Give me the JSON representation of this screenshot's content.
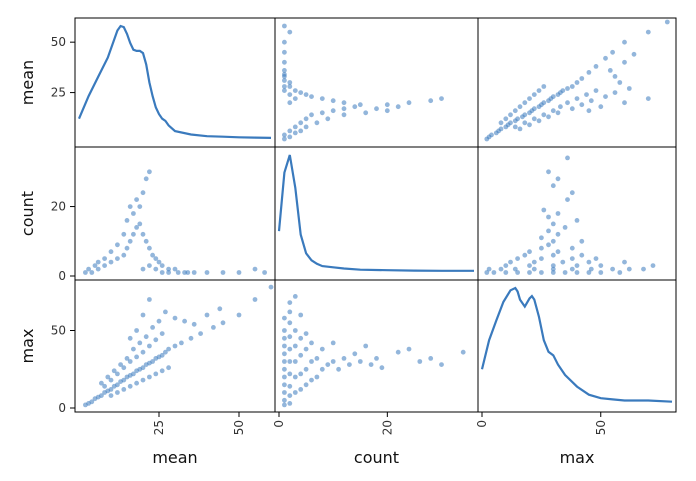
{
  "chart_data": {
    "type": "scatter",
    "variables": [
      "mean",
      "count",
      "max"
    ],
    "grid": false,
    "color": "#3a7abd",
    "ranges": {
      "mean": [
        0,
        60
      ],
      "count": [
        0,
        36
      ],
      "max": [
        0,
        80
      ]
    },
    "x_ticks": {
      "mean": [
        25,
        50
      ],
      "count": [
        0,
        20
      ],
      "max": [
        0,
        50
      ]
    },
    "y_ticks": {
      "mean": [
        25,
        50
      ],
      "count": [
        0,
        20
      ],
      "max": [
        0,
        50
      ]
    },
    "tick_labels": {
      "x_mean": [
        "25",
        "50"
      ],
      "x_count": [
        "0",
        "20"
      ],
      "x_max": [
        "0",
        "50"
      ],
      "y_mean": [
        "25",
        "50"
      ],
      "y_count": [
        "0",
        "20"
      ],
      "y_max": [
        "0",
        "50"
      ]
    },
    "axis_labels": {
      "x_mean": "mean",
      "x_count": "count",
      "x_max": "max",
      "y_mean": "mean",
      "y_count": "count",
      "y_max": "max"
    },
    "kde": {
      "mean": {
        "x": [
          0,
          3,
          6,
          9,
          12,
          13,
          14,
          15,
          16,
          17,
          18,
          19,
          20,
          21,
          22,
          23,
          24,
          25,
          26,
          27,
          28,
          30,
          35,
          40,
          45,
          50,
          55,
          60
        ],
        "density": [
          0.18,
          0.38,
          0.55,
          0.72,
          0.96,
          1.0,
          0.99,
          0.93,
          0.85,
          0.79,
          0.78,
          0.78,
          0.76,
          0.66,
          0.5,
          0.38,
          0.28,
          0.22,
          0.18,
          0.16,
          0.12,
          0.07,
          0.04,
          0.025,
          0.02,
          0.015,
          0.012,
          0.01
        ]
      },
      "count": {
        "x": [
          0,
          1,
          2,
          3,
          4,
          5,
          6,
          7,
          8,
          10,
          12,
          15,
          20,
          25,
          30,
          36
        ],
        "density": [
          0.35,
          0.85,
          1.0,
          0.72,
          0.32,
          0.16,
          0.1,
          0.07,
          0.05,
          0.04,
          0.03,
          0.02,
          0.015,
          0.012,
          0.01,
          0.01
        ]
      },
      "max": {
        "x": [
          0,
          3,
          6,
          9,
          12,
          14,
          15,
          16,
          18,
          20,
          21,
          22,
          24,
          26,
          28,
          30,
          32,
          35,
          40,
          45,
          50,
          55,
          60,
          70,
          80
        ],
        "density": [
          0.3,
          0.55,
          0.72,
          0.88,
          0.98,
          1.0,
          0.97,
          0.9,
          0.84,
          0.91,
          0.93,
          0.9,
          0.75,
          0.55,
          0.45,
          0.42,
          0.34,
          0.25,
          0.15,
          0.08,
          0.05,
          0.04,
          0.03,
          0.03,
          0.02
        ]
      }
    },
    "scatter": {
      "mean_max": [
        [
          2,
          2
        ],
        [
          3,
          3
        ],
        [
          4,
          4
        ],
        [
          5,
          6
        ],
        [
          6,
          7
        ],
        [
          7,
          8
        ],
        [
          8,
          10
        ],
        [
          9,
          11
        ],
        [
          10,
          12
        ],
        [
          11,
          14
        ],
        [
          12,
          15
        ],
        [
          13,
          17
        ],
        [
          14,
          18
        ],
        [
          15,
          20
        ],
        [
          16,
          21
        ],
        [
          17,
          22
        ],
        [
          18,
          24
        ],
        [
          19,
          25
        ],
        [
          20,
          26
        ],
        [
          21,
          28
        ],
        [
          22,
          29
        ],
        [
          23,
          30
        ],
        [
          24,
          32
        ],
        [
          25,
          33
        ],
        [
          26,
          34
        ],
        [
          27,
          36
        ],
        [
          28,
          38
        ],
        [
          30,
          40
        ],
        [
          32,
          42
        ],
        [
          35,
          45
        ],
        [
          38,
          48
        ],
        [
          42,
          52
        ],
        [
          45,
          55
        ],
        [
          50,
          60
        ],
        [
          55,
          70
        ],
        [
          60,
          78
        ],
        [
          8,
          14
        ],
        [
          10,
          18
        ],
        [
          12,
          22
        ],
        [
          14,
          26
        ],
        [
          16,
          30
        ],
        [
          18,
          33
        ],
        [
          20,
          36
        ],
        [
          22,
          40
        ],
        [
          24,
          44
        ],
        [
          26,
          48
        ],
        [
          15,
          32
        ],
        [
          17,
          38
        ],
        [
          19,
          42
        ],
        [
          21,
          46
        ],
        [
          23,
          52
        ],
        [
          25,
          56
        ],
        [
          13,
          28
        ],
        [
          11,
          24
        ],
        [
          9,
          20
        ],
        [
          7,
          16
        ],
        [
          20,
          60
        ],
        [
          22,
          70
        ],
        [
          18,
          50
        ],
        [
          16,
          45
        ],
        [
          27,
          62
        ],
        [
          30,
          58
        ],
        [
          33,
          56
        ],
        [
          36,
          54
        ],
        [
          40,
          60
        ],
        [
          44,
          64
        ],
        [
          10,
          8
        ],
        [
          12,
          10
        ],
        [
          14,
          12
        ],
        [
          16,
          14
        ],
        [
          18,
          16
        ],
        [
          20,
          18
        ],
        [
          22,
          20
        ],
        [
          24,
          22
        ],
        [
          26,
          24
        ],
        [
          28,
          26
        ]
      ],
      "mean_count": [
        [
          2,
          1
        ],
        [
          4,
          1
        ],
        [
          6,
          2
        ],
        [
          8,
          3
        ],
        [
          10,
          4
        ],
        [
          12,
          5
        ],
        [
          14,
          6
        ],
        [
          15,
          8
        ],
        [
          16,
          10
        ],
        [
          17,
          12
        ],
        [
          18,
          14
        ],
        [
          19,
          15
        ],
        [
          20,
          12
        ],
        [
          21,
          10
        ],
        [
          22,
          8
        ],
        [
          23,
          6
        ],
        [
          24,
          5
        ],
        [
          25,
          4
        ],
        [
          26,
          3
        ],
        [
          28,
          2
        ],
        [
          30,
          2
        ],
        [
          33,
          1
        ],
        [
          36,
          1
        ],
        [
          40,
          1
        ],
        [
          45,
          1
        ],
        [
          50,
          1
        ],
        [
          55,
          2
        ],
        [
          58,
          1
        ],
        [
          15,
          16
        ],
        [
          17,
          18
        ],
        [
          19,
          20
        ],
        [
          20,
          24
        ],
        [
          21,
          28
        ],
        [
          22,
          30
        ],
        [
          18,
          22
        ],
        [
          16,
          20
        ],
        [
          14,
          12
        ],
        [
          12,
          9
        ],
        [
          10,
          7
        ],
        [
          8,
          5
        ],
        [
          6,
          4
        ],
        [
          5,
          3
        ],
        [
          3,
          2
        ],
        [
          20,
          2
        ],
        [
          22,
          3
        ],
        [
          24,
          2
        ],
        [
          26,
          1
        ],
        [
          28,
          1
        ],
        [
          31,
          1
        ],
        [
          34,
          1
        ]
      ],
      "count_max": [
        [
          1,
          2
        ],
        [
          1,
          5
        ],
        [
          1,
          10
        ],
        [
          1,
          15
        ],
        [
          1,
          20
        ],
        [
          1,
          25
        ],
        [
          1,
          30
        ],
        [
          1,
          35
        ],
        [
          1,
          40
        ],
        [
          1,
          45
        ],
        [
          1,
          50
        ],
        [
          2,
          3
        ],
        [
          2,
          8
        ],
        [
          2,
          14
        ],
        [
          2,
          22
        ],
        [
          2,
          30
        ],
        [
          2,
          38
        ],
        [
          2,
          46
        ],
        [
          2,
          55
        ],
        [
          2,
          62
        ],
        [
          3,
          10
        ],
        [
          3,
          20
        ],
        [
          3,
          30
        ],
        [
          3,
          40
        ],
        [
          3,
          50
        ],
        [
          4,
          12
        ],
        [
          4,
          22
        ],
        [
          4,
          34
        ],
        [
          4,
          45
        ],
        [
          5,
          15
        ],
        [
          5,
          25
        ],
        [
          5,
          38
        ],
        [
          5,
          48
        ],
        [
          6,
          18
        ],
        [
          6,
          30
        ],
        [
          6,
          42
        ],
        [
          7,
          20
        ],
        [
          7,
          32
        ],
        [
          8,
          25
        ],
        [
          8,
          38
        ],
        [
          9,
          28
        ],
        [
          10,
          30
        ],
        [
          10,
          42
        ],
        [
          11,
          25
        ],
        [
          12,
          32
        ],
        [
          13,
          28
        ],
        [
          14,
          35
        ],
        [
          15,
          30
        ],
        [
          16,
          40
        ],
        [
          17,
          28
        ],
        [
          18,
          32
        ],
        [
          19,
          26
        ],
        [
          22,
          36
        ],
        [
          24,
          38
        ],
        [
          26,
          30
        ],
        [
          28,
          32
        ],
        [
          30,
          28
        ],
        [
          34,
          36
        ],
        [
          2,
          68
        ],
        [
          3,
          72
        ],
        [
          4,
          60
        ],
        [
          1,
          58
        ]
      ]
    }
  }
}
